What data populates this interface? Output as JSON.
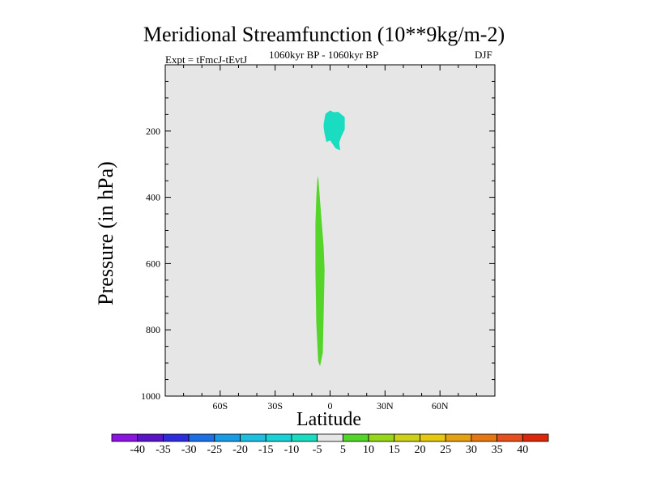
{
  "chart_data": {
    "type": "contour",
    "title": "Meridional Streamfunction (10**9kg/m-2)",
    "left_label": "Expt = tFmcJ-tEvtJ",
    "center_label": "1060kyr BP - 1060kyr BP",
    "right_label": "DJF",
    "xlabel": "Latitude",
    "ylabel": "Pressure (in hPa)",
    "xlim": [
      -90,
      90
    ],
    "ylim": [
      1000,
      0
    ],
    "x_ticks": [
      {
        "value": -60,
        "label": "60S"
      },
      {
        "value": -30,
        "label": "30S"
      },
      {
        "value": 0,
        "label": "0"
      },
      {
        "value": 30,
        "label": "30N"
      },
      {
        "value": 60,
        "label": "60N"
      }
    ],
    "y_ticks": [
      {
        "value": 200,
        "label": "200"
      },
      {
        "value": 400,
        "label": "400"
      },
      {
        "value": 600,
        "label": "600"
      },
      {
        "value": 800,
        "label": "800"
      },
      {
        "value": 1000,
        "label": "1000"
      }
    ],
    "background_color": "#e6e6e6",
    "regions": [
      {
        "name": "cyan-cell-upper",
        "level": "-10 to -5",
        "color": "#19dcc0",
        "points": [
          [
            -3.5,
            178
          ],
          [
            -2.5,
            148
          ],
          [
            0,
            138
          ],
          [
            2,
            143
          ],
          [
            4.5,
            142
          ],
          [
            8,
            158
          ],
          [
            8,
            195
          ],
          [
            6,
            218
          ],
          [
            5,
            235
          ],
          [
            5.5,
            258
          ],
          [
            3,
            252
          ],
          [
            0,
            228
          ],
          [
            -2,
            233
          ],
          [
            -3,
            208
          ],
          [
            -3.5,
            190
          ]
        ]
      },
      {
        "name": "green-cell-lower",
        "level": "5 to 10",
        "color": "#55d42a",
        "points": [
          [
            -6.5,
            335
          ],
          [
            -5.5,
            410
          ],
          [
            -3.5,
            550
          ],
          [
            -3,
            620
          ],
          [
            -3.5,
            750
          ],
          [
            -4,
            870
          ],
          [
            -5.5,
            910
          ],
          [
            -6.5,
            895
          ],
          [
            -7.5,
            780
          ],
          [
            -8,
            620
          ],
          [
            -8,
            480
          ],
          [
            -7.5,
            400
          ],
          [
            -7,
            350
          ]
        ]
      }
    ],
    "colorbar": {
      "labels": [
        "-40",
        "-35",
        "-30",
        "-25",
        "-20",
        "-15",
        "-10",
        "-5",
        "5",
        "10",
        "15",
        "20",
        "25",
        "30",
        "35",
        "40"
      ],
      "colors": [
        "#8b14e0",
        "#5a14c8",
        "#2d2ddc",
        "#1e6ee6",
        "#199be6",
        "#1ebee1",
        "#19d2d7",
        "#19dcc0",
        "#e6e6e6",
        "#55d42a",
        "#96d719",
        "#cdd219",
        "#e6c814",
        "#e6a014",
        "#e67814",
        "#e6501e",
        "#dc280a"
      ]
    }
  }
}
